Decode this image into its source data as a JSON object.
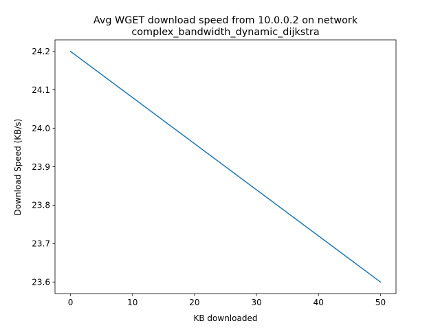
{
  "chart_data": {
    "type": "line",
    "title_lines": [
      "Avg WGET download speed from 10.0.0.2 on network",
      "complex_bandwidth_dynamic_dijkstra"
    ],
    "xlabel": "KB downloaded",
    "ylabel": "Download Speed (KB/s)",
    "xlim": [
      -2.5,
      52.5
    ],
    "ylim": [
      23.57,
      24.23
    ],
    "xticks": [
      0,
      10,
      20,
      30,
      40,
      50
    ],
    "xtick_labels": [
      "0",
      "10",
      "20",
      "30",
      "40",
      "50"
    ],
    "yticks": [
      23.6,
      23.7,
      23.8,
      23.9,
      24.0,
      24.1,
      24.2
    ],
    "ytick_labels": [
      "23.6",
      "23.7",
      "23.8",
      "23.9",
      "24.0",
      "24.1",
      "24.2"
    ],
    "grid": false,
    "series": [
      {
        "color": "#1f77b4",
        "x": [
          0,
          50
        ],
        "y": [
          24.2,
          23.6
        ]
      }
    ]
  }
}
